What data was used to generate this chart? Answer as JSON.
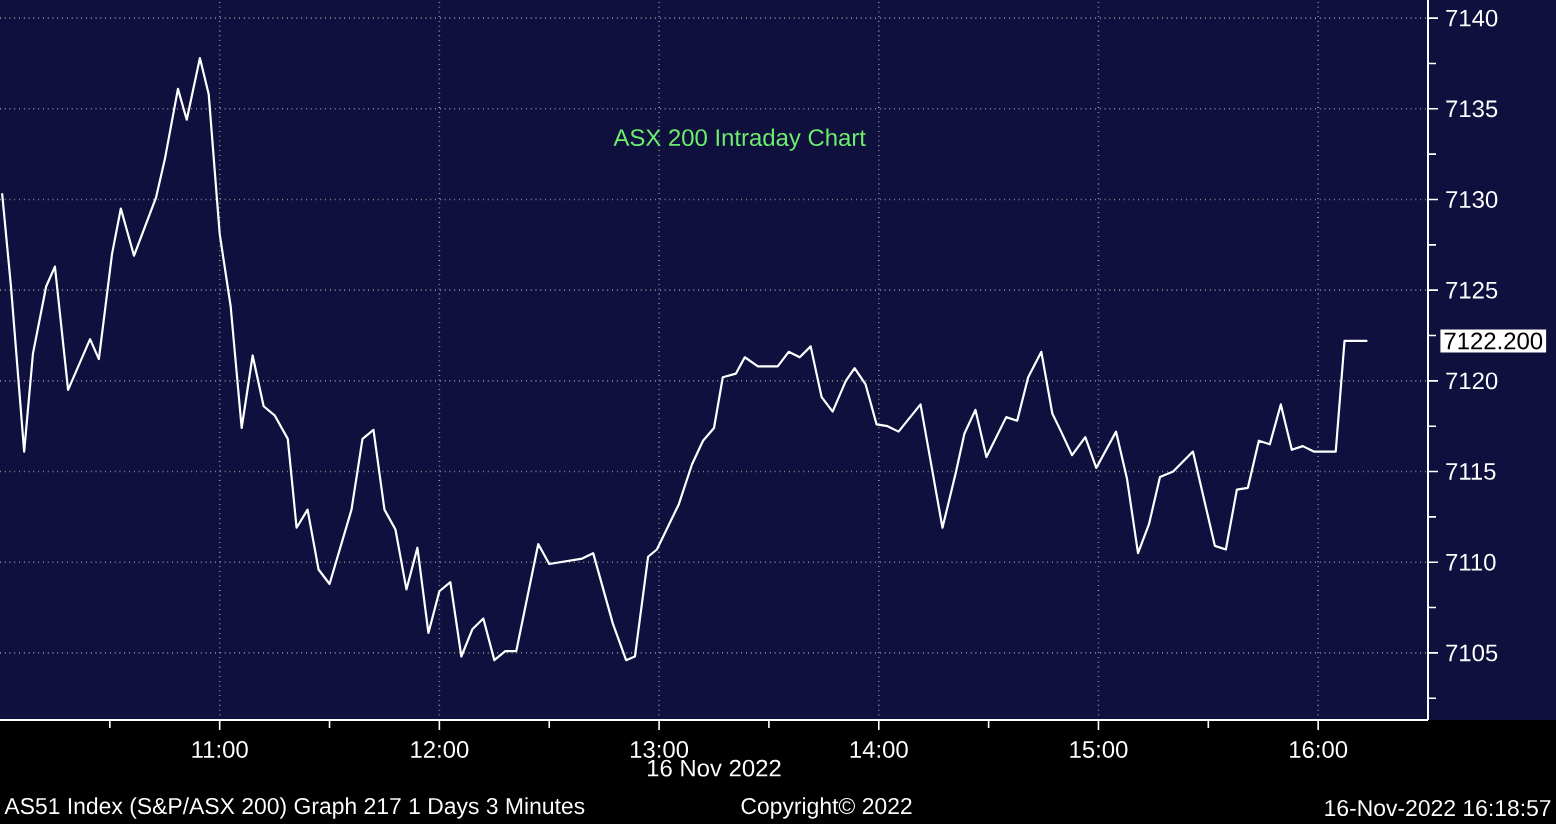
{
  "chart_data": {
    "type": "line",
    "title": "ASX 200 Intraday Chart",
    "xlabel": "16 Nov 2022",
    "x": [
      10.01,
      10.05,
      10.11,
      10.15,
      10.21,
      10.25,
      10.31,
      10.41,
      10.45,
      10.51,
      10.55,
      10.61,
      10.71,
      10.75,
      10.81,
      10.85,
      10.91,
      10.95,
      11.0,
      11.05,
      11.1,
      11.15,
      11.2,
      11.25,
      11.31,
      11.35,
      11.4,
      11.45,
      11.5,
      11.6,
      11.65,
      11.7,
      11.75,
      11.8,
      11.85,
      11.9,
      11.95,
      12.0,
      12.05,
      12.1,
      12.15,
      12.2,
      12.25,
      12.3,
      12.35,
      12.45,
      12.5,
      12.65,
      12.7,
      12.79,
      12.85,
      12.89,
      12.95,
      12.99,
      13.09,
      13.15,
      13.2,
      13.25,
      13.29,
      13.35,
      13.39,
      13.45,
      13.54,
      13.59,
      13.64,
      13.69,
      13.74,
      13.79,
      13.85,
      13.89,
      13.94,
      13.99,
      14.04,
      14.09,
      14.19,
      14.29,
      14.35,
      14.39,
      14.44,
      14.49,
      14.58,
      14.63,
      14.68,
      14.74,
      14.79,
      14.83,
      14.88,
      14.94,
      14.99,
      15.08,
      15.13,
      15.18,
      15.23,
      15.28,
      15.34,
      15.43,
      15.48,
      15.53,
      15.58,
      15.63,
      15.68,
      15.73,
      15.78,
      15.83,
      15.88,
      15.93,
      15.98,
      16.08,
      16.12,
      16.22
    ],
    "series": [
      {
        "color": "#ffffff",
        "values": [
          7130.3,
          7125.2,
          7116.1,
          7121.5,
          7125.2,
          7126.3,
          7119.5,
          7122.3,
          7121.2,
          7127.0,
          7129.5,
          7126.9,
          7130.1,
          7132.2,
          7136.1,
          7134.4,
          7137.8,
          7135.8,
          7128.1,
          7124.1,
          7117.4,
          7121.4,
          7118.6,
          7118.1,
          7116.8,
          7111.9,
          7112.9,
          7109.6,
          7108.8,
          7112.9,
          7116.8,
          7117.3,
          7112.9,
          7111.8,
          7108.5,
          7110.8,
          7106.1,
          7108.4,
          7108.9,
          7104.8,
          7106.3,
          7106.9,
          7104.6,
          7105.1,
          7105.1,
          7111.0,
          7109.9,
          7110.2,
          7110.5,
          7106.6,
          7104.6,
          7104.8,
          7110.3,
          7110.7,
          7113.2,
          7115.4,
          7116.7,
          7117.4,
          7120.2,
          7120.4,
          7121.3,
          7120.8,
          7120.8,
          7121.6,
          7121.3,
          7121.9,
          7119.1,
          7118.3,
          7120.0,
          7120.7,
          7119.8,
          7117.6,
          7117.5,
          7117.2,
          7118.7,
          7111.9,
          7114.9,
          7117.1,
          7118.4,
          7115.8,
          7118.0,
          7117.8,
          7120.2,
          7121.6,
          7118.2,
          7117.2,
          7115.9,
          7116.9,
          7115.2,
          7117.2,
          7114.6,
          7110.5,
          7112.1,
          7114.7,
          7115.0,
          7116.1,
          7113.5,
          7110.9,
          7110.7,
          7114.0,
          7114.1,
          7116.7,
          7116.5,
          7118.7,
          7116.2,
          7116.4,
          7116.1,
          7116.1,
          7122.2,
          7122.2
        ]
      }
    ],
    "xlim": [
      10.0,
      16.5
    ],
    "xticks": [
      {
        "value": 10.5,
        "label": null
      },
      {
        "value": 11,
        "label": "11:00"
      },
      {
        "value": 11.5,
        "label": null
      },
      {
        "value": 12,
        "label": "12:00"
      },
      {
        "value": 12.5,
        "label": null
      },
      {
        "value": 13,
        "label": "13:00"
      },
      {
        "value": 13.5,
        "label": null
      },
      {
        "value": 14,
        "label": "14:00"
      },
      {
        "value": 14.5,
        "label": null
      },
      {
        "value": 15,
        "label": "15:00"
      },
      {
        "value": 15.5,
        "label": null
      },
      {
        "value": 16,
        "label": "16:00"
      }
    ],
    "ylim": [
      7101.3,
      7141
    ],
    "yticks": [
      {
        "value": 7102.5,
        "label": null
      },
      7105,
      {
        "value": 7107.5,
        "label": null
      },
      7110,
      {
        "value": 7112.5,
        "label": null
      },
      7115,
      {
        "value": 7117.5,
        "label": null
      },
      7120,
      {
        "value": 7122.5,
        "label": null
      },
      7125,
      {
        "value": 7127.5,
        "label": null
      },
      7130,
      {
        "value": 7132.5,
        "label": null
      },
      7135,
      {
        "value": 7137.5,
        "label": null
      },
      7140
    ],
    "grid": true,
    "annotations": [
      "AS51 Index (S&P/ASX 200) Graph 217 1 Days 3 Minutes",
      "Copyright© 2022",
      "16-Nov-2022 16:18:57",
      "7122.200"
    ]
  }
}
